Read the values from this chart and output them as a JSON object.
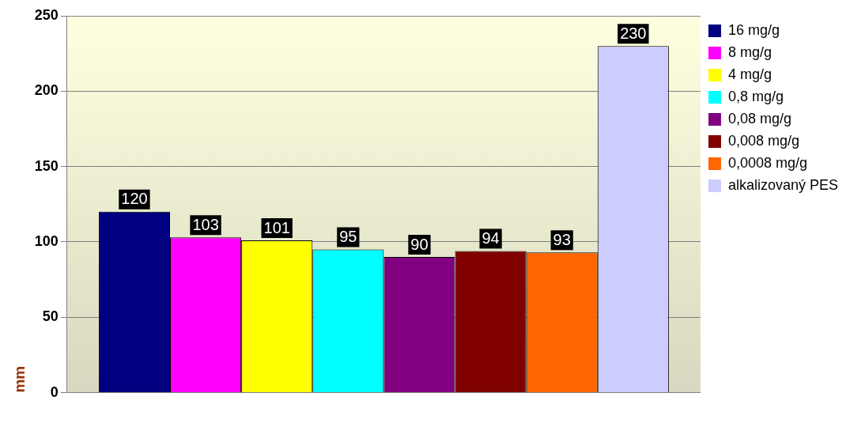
{
  "chart_data": {
    "type": "bar",
    "categories": [
      null
    ],
    "ylabel": "mm",
    "ylim": [
      0,
      250
    ],
    "yticks": [
      0,
      50,
      100,
      150,
      200,
      250
    ],
    "grid": "y",
    "legend": "right",
    "data_labels": true,
    "series": [
      {
        "name": "16 mg/g",
        "color": "#000080",
        "values": [
          120
        ]
      },
      {
        "name": "8 mg/g",
        "color": "#ff00ff",
        "values": [
          103
        ]
      },
      {
        "name": "4 mg/g",
        "color": "#ffff00",
        "values": [
          101
        ]
      },
      {
        "name": "0,8 mg/g",
        "color": "#00ffff",
        "values": [
          95
        ]
      },
      {
        "name": "0,08 mg/g",
        "color": "#800080",
        "values": [
          90
        ]
      },
      {
        "name": "0,008 mg/g",
        "color": "#800000",
        "values": [
          94
        ]
      },
      {
        "name": "0,0008 mg/g",
        "color": "#ff6600",
        "values": [
          93
        ]
      },
      {
        "name": "alkalizovaný PES",
        "color": "#ccccff",
        "values": [
          230
        ]
      }
    ]
  }
}
